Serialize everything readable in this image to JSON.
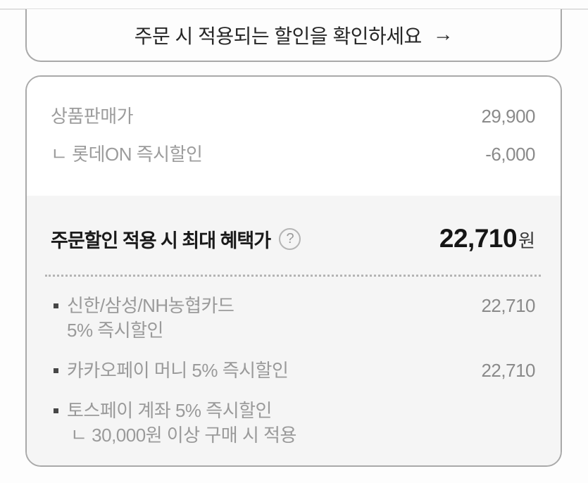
{
  "banner": {
    "text": "주문 시 적용되는 할인을 확인하세요",
    "arrow_icon": "→"
  },
  "summary": {
    "rows": [
      {
        "label": "상품판매가",
        "value": "29,900"
      },
      {
        "label": "ㄴ 롯데ON 즉시할인",
        "value": "-6,000"
      }
    ]
  },
  "benefit": {
    "title": "주문할인 적용 시 최대 혜택가",
    "help_glyph": "?",
    "price": "22,710",
    "currency": "원",
    "items": [
      {
        "line1": "신한/삼성/NH농협카드",
        "line2": "5% 즉시할인",
        "value": "22,710"
      },
      {
        "line1": "카카오페이 머니 5% 즉시할인",
        "value": "22,710"
      },
      {
        "line1": "토스페이 계좌 5% 즉시할인",
        "sub": "ㄴ 30,000원 이상 구매 시 적용"
      }
    ]
  },
  "colors": {
    "card_border": "#a9a9a9",
    "panel_bg": "#f5f5f5",
    "muted_text": "#9a9a9a",
    "value_text": "#8a8a8a",
    "strong_text": "#1a1a1a",
    "top_divider": "#dfdfdf",
    "dotted_divider": "#b4b4b4"
  }
}
